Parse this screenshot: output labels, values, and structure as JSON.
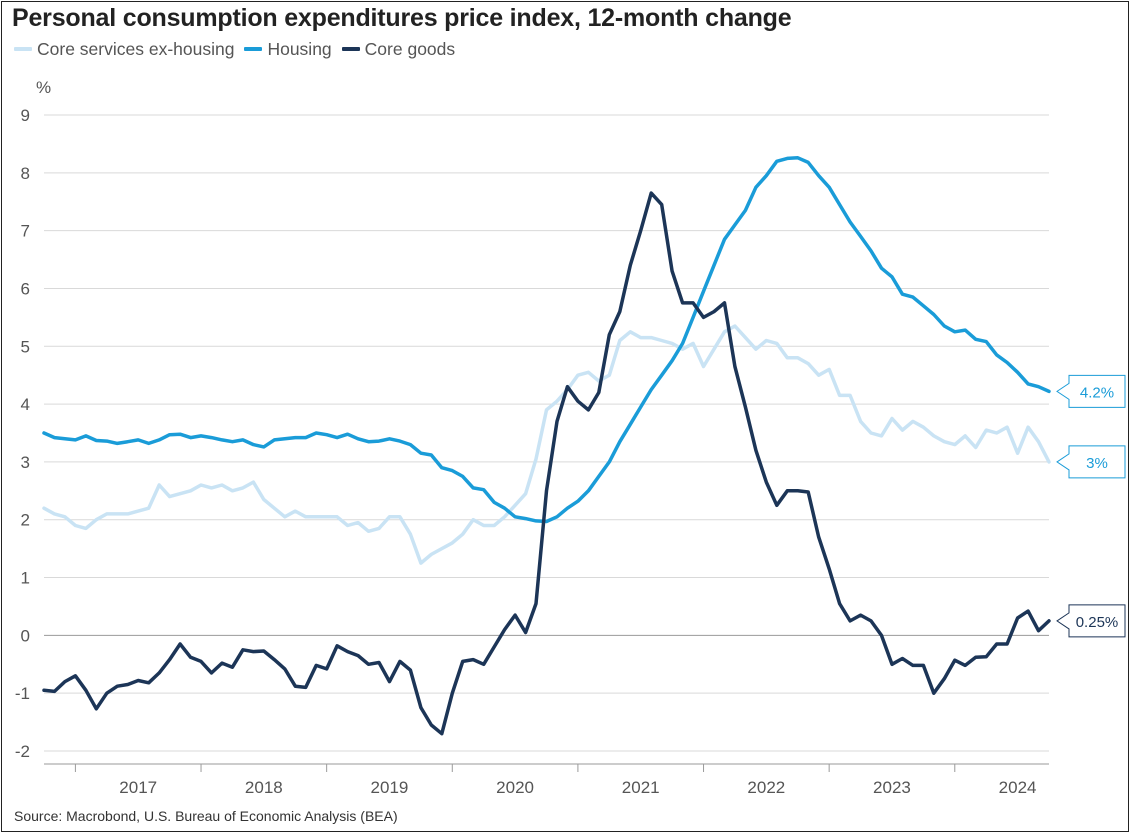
{
  "title": "Personal consumption expenditures price index, 12-month change",
  "source": "Source: Macrobond, U.S. Bureau of Economic Analysis (BEA)",
  "legend": [
    {
      "label": "Core services ex-housing",
      "color": "#c9e3f4"
    },
    {
      "label": "Housing",
      "color": "#1a9cd8"
    },
    {
      "label": "Core goods",
      "color": "#1c3557"
    }
  ],
  "chart_data": {
    "type": "line",
    "title": "Personal consumption expenditures price index, 12-month change",
    "ylabel": "%",
    "xlabel": "",
    "ylim": [
      -2,
      9
    ],
    "yticks": [
      -2,
      -1,
      0,
      1,
      2,
      3,
      4,
      5,
      6,
      7,
      8,
      9
    ],
    "xlim": [
      2016.75,
      2024.75
    ],
    "xtick_labels": [
      "2017",
      "2018",
      "2019",
      "2020",
      "2021",
      "2022",
      "2023",
      "2024"
    ],
    "grid": "horizontal",
    "x_start": "2016-10",
    "frequency": "monthly",
    "series": [
      {
        "name": "Core services ex-housing",
        "color": "#c9e3f4",
        "end_label": "3%",
        "values": [
          2.2,
          2.1,
          2.05,
          1.9,
          1.85,
          2.0,
          2.1,
          2.1,
          2.1,
          2.15,
          2.2,
          2.6,
          2.4,
          2.45,
          2.5,
          2.6,
          2.55,
          2.6,
          2.5,
          2.55,
          2.65,
          2.35,
          2.2,
          2.05,
          2.15,
          2.05,
          2.05,
          2.05,
          2.05,
          1.9,
          1.95,
          1.8,
          1.85,
          2.05,
          2.05,
          1.75,
          1.25,
          1.4,
          1.5,
          1.6,
          1.75,
          2.0,
          1.9,
          1.9,
          2.05,
          2.25,
          2.45,
          3.05,
          3.9,
          4.05,
          4.25,
          4.5,
          4.55,
          4.4,
          4.5,
          5.1,
          5.25,
          5.15,
          5.15,
          5.1,
          5.05,
          4.95,
          5.05,
          4.65,
          4.95,
          5.25,
          5.35,
          5.15,
          4.95,
          5.1,
          5.05,
          4.8,
          4.8,
          4.7,
          4.5,
          4.6,
          4.15,
          4.15,
          3.7,
          3.5,
          3.45,
          3.75,
          3.55,
          3.7,
          3.6,
          3.45,
          3.35,
          3.3,
          3.45,
          3.25,
          3.55,
          3.5,
          3.6,
          3.15,
          3.6,
          3.35,
          3.0
        ]
      },
      {
        "name": "Housing",
        "color": "#1a9cd8",
        "end_label": "4.2%",
        "values": [
          3.5,
          3.42,
          3.4,
          3.38,
          3.45,
          3.37,
          3.36,
          3.32,
          3.35,
          3.38,
          3.32,
          3.38,
          3.47,
          3.48,
          3.42,
          3.45,
          3.42,
          3.38,
          3.35,
          3.38,
          3.3,
          3.26,
          3.38,
          3.4,
          3.42,
          3.42,
          3.5,
          3.47,
          3.42,
          3.48,
          3.4,
          3.35,
          3.36,
          3.4,
          3.36,
          3.3,
          3.15,
          3.12,
          2.9,
          2.85,
          2.75,
          2.55,
          2.52,
          2.3,
          2.2,
          2.05,
          2.02,
          1.98,
          1.97,
          2.05,
          2.2,
          2.32,
          2.5,
          2.75,
          3.0,
          3.35,
          3.65,
          3.95,
          4.25,
          4.5,
          4.75,
          5.05,
          5.5,
          5.95,
          6.4,
          6.85,
          7.1,
          7.35,
          7.75,
          7.95,
          8.2,
          8.25,
          8.26,
          8.18,
          7.95,
          7.75,
          7.45,
          7.15,
          6.9,
          6.65,
          6.35,
          6.2,
          5.9,
          5.85,
          5.7,
          5.55,
          5.35,
          5.25,
          5.28,
          5.12,
          5.08,
          4.85,
          4.72,
          4.55,
          4.35,
          4.3,
          4.22
        ]
      },
      {
        "name": "Core goods",
        "color": "#1c3557",
        "end_label": "0.25%",
        "values": [
          -0.95,
          -0.97,
          -0.8,
          -0.7,
          -0.95,
          -1.27,
          -1.0,
          -0.88,
          -0.85,
          -0.78,
          -0.82,
          -0.65,
          -0.42,
          -0.15,
          -0.38,
          -0.45,
          -0.65,
          -0.48,
          -0.55,
          -0.25,
          -0.28,
          -0.27,
          -0.42,
          -0.58,
          -0.88,
          -0.9,
          -0.52,
          -0.58,
          -0.18,
          -0.28,
          -0.35,
          -0.5,
          -0.47,
          -0.8,
          -0.45,
          -0.6,
          -1.25,
          -1.55,
          -1.7,
          -1.0,
          -0.45,
          -0.42,
          -0.5,
          -0.2,
          0.1,
          0.35,
          0.05,
          0.55,
          2.5,
          3.7,
          4.3,
          4.05,
          3.9,
          4.2,
          5.2,
          5.6,
          6.4,
          7.0,
          7.65,
          7.45,
          6.3,
          5.75,
          5.75,
          5.5,
          5.6,
          5.75,
          4.65,
          3.95,
          3.2,
          2.65,
          2.25,
          2.5,
          2.5,
          2.48,
          1.7,
          1.15,
          0.55,
          0.25,
          0.35,
          0.25,
          0.0,
          -0.5,
          -0.4,
          -0.52,
          -0.52,
          -1.0,
          -0.75,
          -0.43,
          -0.52,
          -0.38,
          -0.37,
          -0.15,
          -0.15,
          0.3,
          0.42,
          0.08,
          0.25
        ]
      }
    ]
  }
}
